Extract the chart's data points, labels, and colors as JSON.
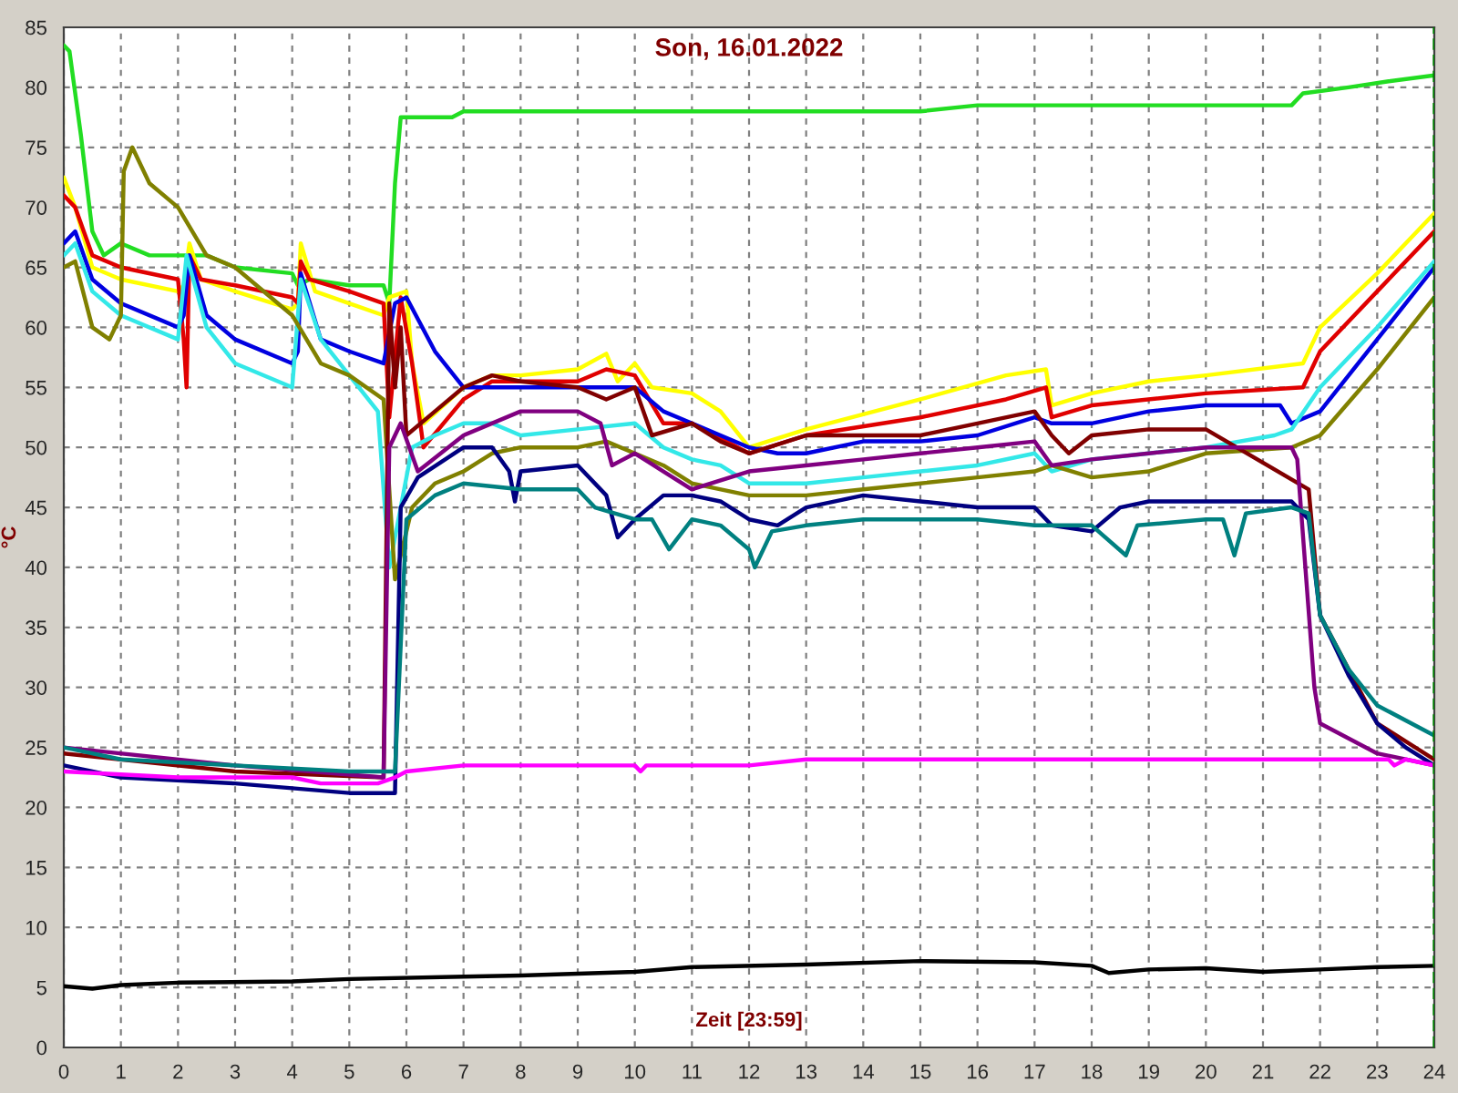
{
  "chart_data": {
    "type": "line",
    "title": "Son, 16.01.2022",
    "xlabel": "Zeit [23:59]",
    "ylabel": "°C",
    "xlim": [
      0,
      24
    ],
    "xticks": [
      0,
      1,
      2,
      3,
      4,
      5,
      6,
      7,
      8,
      9,
      10,
      11,
      12,
      13,
      14,
      15,
      16,
      17,
      18,
      19,
      20,
      21,
      22,
      23,
      24
    ],
    "ylim": [
      0,
      85
    ],
    "yticks": [
      0,
      5,
      10,
      15,
      20,
      25,
      30,
      35,
      40,
      45,
      50,
      55,
      60,
      65,
      70,
      75,
      80,
      85
    ],
    "grid": true,
    "legend": false,
    "marker": "none",
    "line_style": "solid",
    "ref_lines": [
      {
        "axis": "x",
        "value": 24,
        "color": "#008000",
        "line_style": "dashed"
      }
    ],
    "series": [
      {
        "color": "#22dd22",
        "x": [
          0,
          0.1,
          0.3,
          0.5,
          0.7,
          1.0,
          1.5,
          2.5,
          3.0,
          4.0,
          4.1,
          4.3,
          5.0,
          5.6,
          5.7,
          5.8,
          5.9,
          6.2,
          6.8,
          7.0,
          8,
          10,
          12,
          15,
          16,
          19,
          21,
          21.5,
          21.7,
          22.5,
          23.2,
          24
        ],
        "values": [
          83.5,
          83,
          76,
          68,
          66,
          67,
          66,
          66,
          65,
          64.5,
          63.5,
          64,
          63.5,
          63.5,
          62,
          72,
          77.5,
          77.5,
          77.5,
          78,
          78,
          78,
          78,
          78,
          78.5,
          78.5,
          78.5,
          78.5,
          79.5,
          80,
          80.5,
          81
        ]
      },
      {
        "color": "#ffff00",
        "x": [
          0,
          0.2,
          0.5,
          1,
          2,
          2.1,
          2.2,
          2.4,
          3,
          4,
          4.1,
          4.15,
          4.4,
          5,
          5.6,
          5.7,
          6.0,
          6.1,
          6.3,
          7,
          7.5,
          8,
          9,
          9.5,
          9.7,
          10,
          10.3,
          11,
          11.5,
          12,
          13,
          15,
          16.5,
          17.2,
          17.3,
          18,
          19,
          20,
          21.7,
          22,
          23,
          24
        ],
        "values": [
          72.5,
          70,
          65,
          64,
          63,
          63.5,
          67,
          64,
          63,
          61.5,
          62,
          67,
          63,
          62,
          61,
          62.5,
          63,
          57,
          52,
          55,
          56,
          56,
          56.5,
          57.8,
          55.5,
          57,
          55,
          54.5,
          53,
          50,
          51.5,
          54,
          56,
          56.5,
          53.5,
          54.5,
          55.5,
          56,
          57,
          60,
          64.5,
          69.5
        ]
      },
      {
        "color": "#e00000",
        "x": [
          0,
          0.2,
          0.5,
          1,
          2,
          2.1,
          2.15,
          2.2,
          2.4,
          3,
          4,
          4.1,
          4.15,
          4.3,
          5,
          5.6,
          5.7,
          5.9,
          6.1,
          6.3,
          7,
          7.5,
          8,
          9,
          9.5,
          10,
          10.5,
          11,
          12,
          13,
          15,
          16.5,
          17.2,
          17.3,
          18,
          20,
          21.7,
          22,
          23,
          24
        ],
        "values": [
          71,
          70,
          66,
          65,
          64,
          59,
          55,
          66,
          64,
          63.5,
          62.5,
          62,
          65.5,
          64,
          63,
          62,
          52.5,
          62.5,
          57,
          50,
          54,
          55.5,
          55.5,
          55.5,
          56.5,
          56,
          52,
          52,
          49.5,
          51,
          52.5,
          54,
          55,
          52.5,
          53.5,
          54.5,
          55,
          58,
          63,
          68
        ]
      },
      {
        "color": "#0000e0",
        "x": [
          0,
          0.2,
          0.5,
          1,
          2,
          2.1,
          2.2,
          2.5,
          3,
          4,
          4.1,
          4.15,
          4.5,
          5,
          5.6,
          5.8,
          6,
          6.5,
          7,
          7.5,
          8,
          9,
          10,
          10.5,
          11,
          12,
          12.5,
          13,
          14,
          15,
          16,
          17,
          17.3,
          18,
          19,
          20,
          21.3,
          21.5,
          22,
          23,
          24
        ],
        "values": [
          67,
          68,
          64,
          62,
          60,
          61,
          66,
          61,
          59,
          57,
          58,
          64.5,
          59,
          58,
          57,
          62,
          62.5,
          58,
          55,
          55,
          55,
          55,
          55,
          53,
          52,
          50,
          49.5,
          49.5,
          50.5,
          50.5,
          51,
          52.5,
          52,
          52,
          53,
          53.5,
          53.5,
          52,
          53,
          59,
          65
        ]
      },
      {
        "color": "#33e8e8",
        "x": [
          0,
          0.2,
          0.5,
          1,
          2,
          2.15,
          2.5,
          3,
          4,
          4.15,
          4.5,
          5,
          5.5,
          5.7,
          5.9,
          6.1,
          6.5,
          7,
          7.5,
          8,
          9,
          10,
          10.5,
          11,
          11.5,
          12,
          13,
          14,
          15,
          16,
          17,
          17.3,
          18,
          19,
          20,
          21.2,
          21.5,
          22,
          23,
          24
        ],
        "values": [
          66,
          67,
          63,
          61,
          59,
          66,
          60,
          57,
          55,
          64,
          59,
          56,
          53,
          40,
          45,
          50,
          51,
          52,
          52,
          51,
          51.5,
          52,
          50,
          49,
          48.5,
          47,
          47,
          47.5,
          48,
          48.5,
          49.5,
          48,
          49,
          49.5,
          50,
          51,
          51.5,
          55,
          60,
          65.5
        ]
      },
      {
        "color": "#808000",
        "x": [
          0,
          0.2,
          0.5,
          0.8,
          1.0,
          1.05,
          1.2,
          1.5,
          2,
          2.5,
          3,
          4,
          4.5,
          5,
          5.6,
          5.8,
          6.1,
          6.5,
          7,
          7.5,
          8,
          9,
          9.5,
          10,
          10.5,
          11,
          12,
          13,
          14,
          15,
          16,
          17,
          17.3,
          18,
          19,
          20,
          21.5,
          22,
          23,
          24
        ],
        "values": [
          65,
          65.5,
          60,
          59,
          61,
          73,
          75,
          72,
          70,
          66,
          65,
          61,
          57,
          56,
          54,
          39,
          45,
          47,
          48,
          49.5,
          50,
          50,
          50.5,
          49.5,
          48.5,
          47,
          46,
          46,
          46.5,
          47,
          47.5,
          48,
          48.5,
          47.5,
          48,
          49.5,
          50,
          51,
          56.5,
          62.5
        ]
      },
      {
        "color": "#800000",
        "x": [
          0,
          3,
          5.6,
          5.7,
          5.8,
          5.9,
          6.0,
          6.5,
          7,
          7.5,
          8,
          9,
          9.5,
          10,
          10.3,
          11,
          11.5,
          12,
          13,
          14,
          15,
          16,
          17,
          17.3,
          17.6,
          18,
          19,
          20,
          21.8,
          22,
          23,
          24
        ],
        "values": [
          24.5,
          23,
          22.5,
          62,
          55,
          60,
          51,
          53,
          55,
          56,
          55.5,
          55,
          54,
          55,
          51,
          52,
          50.5,
          49.5,
          51,
          51,
          51,
          52,
          53,
          51,
          49.5,
          51,
          51.5,
          51.5,
          46.5,
          36,
          27,
          24
        ]
      },
      {
        "color": "#800080",
        "x": [
          0,
          3,
          5.6,
          5.7,
          5.9,
          6.2,
          7,
          8,
          9,
          9.4,
          9.6,
          10,
          10.5,
          11,
          12,
          13,
          14,
          15,
          16,
          17,
          17.3,
          18,
          19,
          20,
          21.5,
          21.6,
          21.9,
          22,
          23,
          24
        ],
        "values": [
          25,
          23.5,
          22.5,
          50,
          52,
          48,
          51,
          53,
          53,
          52,
          48.5,
          49.5,
          48,
          46.5,
          48,
          48.5,
          49,
          49.5,
          50,
          50.5,
          48.5,
          49,
          49.5,
          50,
          50,
          49,
          30,
          27,
          24.5,
          23.5
        ]
      },
      {
        "color": "#000080",
        "x": [
          0,
          1,
          3,
          5,
          5.8,
          5.9,
          6.2,
          7,
          7.5,
          7.8,
          7.9,
          8,
          9,
          9.5,
          9.7,
          10,
          10.5,
          11,
          11.5,
          12,
          12.5,
          13,
          14,
          15,
          16,
          17,
          17.3,
          18,
          18.5,
          19,
          20,
          21.5,
          21.8,
          22,
          22.5,
          23,
          23.5,
          24
        ],
        "values": [
          23.5,
          22.5,
          22,
          21.2,
          21.2,
          45,
          47.5,
          50,
          50,
          48,
          45.5,
          48,
          48.5,
          46,
          42.5,
          44,
          46,
          46,
          45.5,
          44,
          43.5,
          45,
          46,
          45.5,
          45,
          45,
          43.5,
          43,
          45,
          45.5,
          45.5,
          45.5,
          44,
          36,
          31,
          27,
          25,
          23.5
        ]
      },
      {
        "color": "#008080",
        "x": [
          0,
          1,
          3,
          5,
          5.8,
          6.0,
          6.5,
          7,
          8,
          9,
          9.3,
          10,
          10.3,
          10.6,
          11,
          11.5,
          12,
          12.1,
          12.4,
          13,
          14,
          15,
          16,
          17,
          18,
          18.6,
          18.8,
          20,
          20.3,
          20.5,
          20.7,
          21.5,
          21.8,
          22,
          22.5,
          23,
          24
        ],
        "values": [
          25,
          24,
          23.5,
          23,
          23,
          44,
          46,
          47,
          46.5,
          46.5,
          45,
          44,
          44,
          41.5,
          44,
          43.5,
          41.5,
          40,
          43,
          43.5,
          44,
          44,
          44,
          43.5,
          43.5,
          41,
          43.5,
          44,
          44,
          41,
          44.5,
          45,
          44.5,
          36,
          31.5,
          28.5,
          26
        ]
      },
      {
        "color": "#ff00ff",
        "x": [
          0,
          2,
          4,
          4.5,
          5,
          5.5,
          5.8,
          6,
          7,
          9,
          10,
          10.1,
          10.2,
          12,
          13,
          21,
          23.2,
          23.3,
          23.5,
          24
        ],
        "values": [
          23,
          22.5,
          22.5,
          22,
          22,
          22,
          22.5,
          23,
          23.5,
          23.5,
          23.5,
          23,
          23.5,
          23.5,
          24,
          24,
          24,
          23.5,
          24,
          23.5
        ]
      },
      {
        "color": "#000000",
        "x": [
          0,
          0.5,
          1,
          2,
          4,
          5,
          7,
          8,
          10,
          11,
          13,
          15,
          17,
          18,
          18.3,
          19,
          20,
          21,
          22,
          23,
          24
        ],
        "values": [
          5.1,
          4.9,
          5.2,
          5.4,
          5.5,
          5.7,
          5.9,
          6.0,
          6.3,
          6.7,
          6.9,
          7.2,
          7.1,
          6.8,
          6.2,
          6.5,
          6.6,
          6.3,
          6.5,
          6.7,
          6.8
        ]
      }
    ]
  }
}
